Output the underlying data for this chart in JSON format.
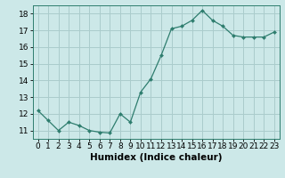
{
  "x": [
    0,
    1,
    2,
    3,
    4,
    5,
    6,
    7,
    8,
    9,
    10,
    11,
    12,
    13,
    14,
    15,
    16,
    17,
    18,
    19,
    20,
    21,
    22,
    23
  ],
  "y": [
    12.2,
    11.6,
    11.0,
    11.5,
    11.3,
    11.0,
    10.9,
    10.85,
    12.0,
    11.5,
    13.3,
    14.1,
    15.5,
    17.1,
    17.25,
    17.6,
    18.2,
    17.6,
    17.25,
    16.7,
    16.6,
    16.6,
    16.6,
    16.9
  ],
  "line_color": "#2e7d6e",
  "marker_color": "#2e7d6e",
  "bg_color": "#cce8e8",
  "grid_color": "#aacccc",
  "xlabel": "Humidex (Indice chaleur)",
  "ylabel": "",
  "xlim": [
    -0.5,
    23.5
  ],
  "ylim": [
    10.5,
    18.5
  ],
  "yticks": [
    11,
    12,
    13,
    14,
    15,
    16,
    17,
    18
  ],
  "xtick_labels": [
    "0",
    "1",
    "2",
    "3",
    "4",
    "5",
    "6",
    "7",
    "8",
    "9",
    "10",
    "11",
    "12",
    "13",
    "14",
    "15",
    "16",
    "17",
    "18",
    "19",
    "20",
    "21",
    "22",
    "23"
  ],
  "font_size": 6.5,
  "xlabel_fontsize": 7.5
}
